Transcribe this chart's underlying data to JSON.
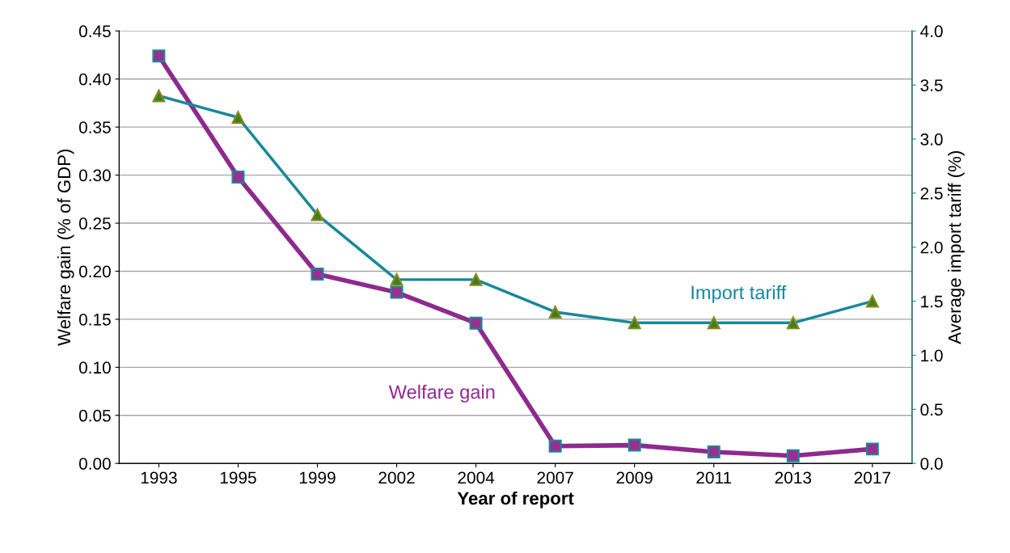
{
  "chart_data": {
    "type": "line",
    "xlabel": "Year of report",
    "ylabel": "Welfare gain (% of GDP)",
    "y2label": "Average import tariff (%)",
    "categories": [
      "1993",
      "1995",
      "1999",
      "2002",
      "2004",
      "2007",
      "2009",
      "2011",
      "2013",
      "2017"
    ],
    "series": [
      {
        "name": "Welfare gain",
        "color": "#8e2a8e",
        "marker": "square",
        "values": [
          0.424,
          0.298,
          0.197,
          0.178,
          0.146,
          0.018,
          0.019,
          0.012,
          0.008,
          0.015
        ]
      },
      {
        "name": "Import tariff",
        "color": "#16899a",
        "marker": "triangle",
        "axis": "y2",
        "values": [
          3.4,
          3.2,
          2.3,
          1.7,
          1.7,
          1.4,
          1.3,
          1.3,
          1.3,
          1.5
        ]
      }
    ],
    "ylim": [
      0,
      0.45
    ],
    "yticks": [
      {
        "value": 0,
        "label": "0.00"
      },
      {
        "value": 0.05,
        "label": "0.05"
      },
      {
        "value": 0.1,
        "label": "0.10"
      },
      {
        "value": 0.15,
        "label": "0.15"
      },
      {
        "value": 0.2,
        "label": "0.20"
      },
      {
        "value": 0.25,
        "label": "0.25"
      },
      {
        "value": 0.3,
        "label": "0.30"
      },
      {
        "value": 0.35,
        "label": "0.35"
      },
      {
        "value": 0.4,
        "label": "0.40"
      },
      {
        "value": 0.45,
        "label": "0.45"
      }
    ],
    "y2lim": [
      0,
      4.0
    ],
    "y2ticks": [
      {
        "value": 0,
        "label": "0.0"
      },
      {
        "value": 0.5,
        "label": "0.5"
      },
      {
        "value": 1,
        "label": "1.0"
      },
      {
        "value": 1.5,
        "label": "1.5"
      },
      {
        "value": 2,
        "label": "2.0"
      },
      {
        "value": 2.5,
        "label": "2.5"
      },
      {
        "value": 3,
        "label": "3.0"
      },
      {
        "value": 3.5,
        "label": "3.5"
      },
      {
        "value": 4,
        "label": "4.0"
      }
    ],
    "grid": "y",
    "legend": false
  }
}
